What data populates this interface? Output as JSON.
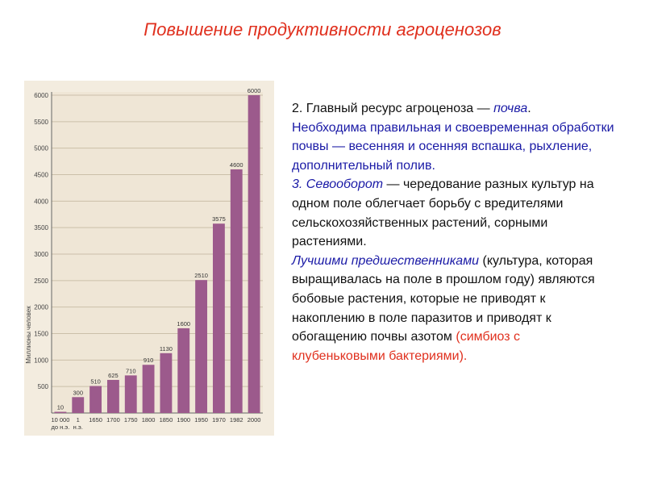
{
  "title": "Повышение продуктивности агроценозов",
  "text": {
    "p1_a": "2. Главный ресурс агроценоза — ",
    "p1_b": "почва",
    "p1_c": ".",
    "p2": "Необходима правильная и своевременная обработки почвы — весенняя и осенняя вспашка, рыхление, дополнительный полив.",
    "p3_a": "3. Севооборот",
    "p3_b": " — чередование разных культур на одном поле облегчает борьбу с вредителями сельскохозяйственных растений, сорными растениями.",
    "p4_a": "Лучшими предшественниками",
    "p4_b": " (культура, которая выращивалась на поле в прошлом году) являются бобовые растения, которые не приводят к накоплению в поле паразитов и приводят к обогащению почвы азотом ",
    "p4_c": "(симбиоз с клубеньковыми бактериями)."
  },
  "colors": {
    "title": "#e0301e",
    "bar": "#9c5a8c",
    "highlight_blue": "#1a1aa6",
    "highlight_red": "#e0301e"
  },
  "chart_data": {
    "type": "bar",
    "categories": [
      "10 000 до н.э.",
      "1 н.э.",
      "1650",
      "1700",
      "1750",
      "1800",
      "1850",
      "1900",
      "1950",
      "1970",
      "1982",
      "2000"
    ],
    "values": [
      10,
      300,
      510,
      625,
      710,
      910,
      1130,
      1600,
      2510,
      3575,
      4600,
      6000
    ],
    "data_labels": [
      "10",
      "300",
      "510",
      "625",
      "710",
      "910",
      "1130",
      "1600",
      "2510",
      "3575",
      "4600",
      "6000"
    ],
    "ylabel": "Миллионы человек",
    "yticks": [
      500,
      1000,
      1500,
      2000,
      2500,
      3000,
      3500,
      4000,
      4500,
      5000,
      5500,
      6000
    ],
    "ylim": [
      0,
      6000
    ],
    "grid": true
  }
}
